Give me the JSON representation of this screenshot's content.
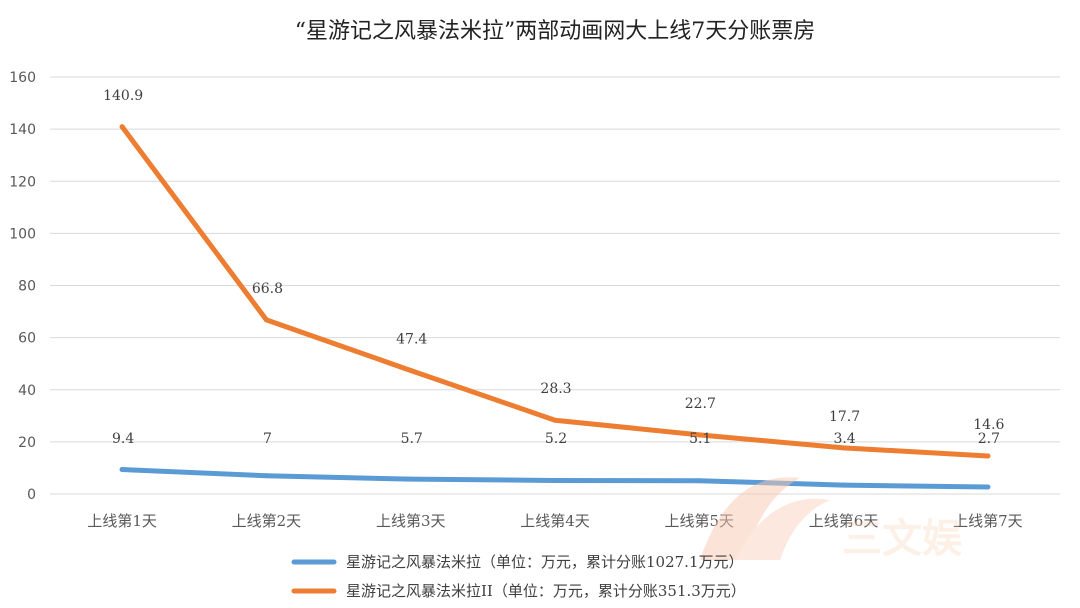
{
  "chart_data": {
    "type": "line",
    "title": "“星游记之风暴法米拉”两部动画网大上线7天分账票房",
    "categories": [
      "上线第1天",
      "上线第2天",
      "上线第3天",
      "上线第4天",
      "上线第5天",
      "上线第6天",
      "上线第7天"
    ],
    "ylim": [
      0,
      160
    ],
    "yticks": [
      0,
      20,
      40,
      60,
      80,
      100,
      120,
      140,
      160
    ],
    "grid": true,
    "legend_position": "bottom",
    "series": [
      {
        "name": "星游记之风暴法米拉（单位：万元，累计分账1027.1万元）",
        "color": "#5b9bd5",
        "values": [
          9.4,
          7,
          5.7,
          5.2,
          5.1,
          3.4,
          2.7
        ],
        "labels": [
          "9.4",
          "7",
          "5.7",
          "5.2",
          "5.1",
          "3.4",
          "2.7"
        ]
      },
      {
        "name": "星游记之风暴法米拉II（单位：万元，累计分账351.3万元）",
        "color": "#ed7d31",
        "values": [
          140.9,
          66.8,
          47.4,
          28.3,
          22.7,
          17.7,
          14.6
        ],
        "labels": [
          "140.9",
          "66.8",
          "47.4",
          "28.3",
          "22.7",
          "17.7",
          "14.6"
        ]
      }
    ]
  },
  "watermark": {
    "text": "三文娱"
  }
}
